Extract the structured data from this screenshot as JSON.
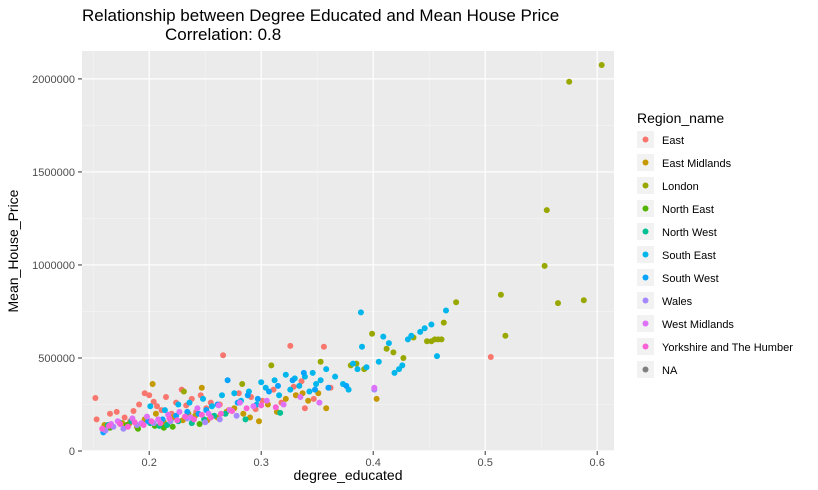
{
  "chart_data": {
    "type": "scatter",
    "title": "Relationship between Degree Educated and Mean House Price",
    "subtitle": "Correlation: 0.8",
    "xlabel": "degree_educated",
    "ylabel": "Mean_House_Price",
    "xlim": [
      0.14,
      0.615
    ],
    "ylim": [
      0,
      2150000
    ],
    "x_ticks": [
      0.2,
      0.3,
      0.4,
      0.5,
      0.6
    ],
    "x_tick_labels": [
      "0.2",
      "0.3",
      "0.4",
      "0.5",
      "0.6"
    ],
    "y_ticks": [
      0,
      500000,
      1000000,
      1500000,
      2000000
    ],
    "y_tick_labels": [
      "0",
      "500000",
      "1000000",
      "1500000",
      "2000000"
    ],
    "grid": true,
    "legend_position": "right",
    "legend_title": "Region_name",
    "series": [
      {
        "name": "East",
        "color": "#F8766D",
        "points": [
          [
            0.152,
            285000
          ],
          [
            0.153,
            170000
          ],
          [
            0.165,
            200000
          ],
          [
            0.171,
            210000
          ],
          [
            0.178,
            180000
          ],
          [
            0.183,
            160000
          ],
          [
            0.186,
            215000
          ],
          [
            0.191,
            250000
          ],
          [
            0.196,
            310000
          ],
          [
            0.2,
            300000
          ],
          [
            0.204,
            265000
          ],
          [
            0.207,
            240000
          ],
          [
            0.211,
            220000
          ],
          [
            0.215,
            290000
          ],
          [
            0.22,
            200000
          ],
          [
            0.224,
            260000
          ],
          [
            0.229,
            330000
          ],
          [
            0.233,
            245000
          ],
          [
            0.238,
            280000
          ],
          [
            0.242,
            210000
          ],
          [
            0.246,
            300000
          ],
          [
            0.251,
            230000
          ],
          [
            0.255,
            260000
          ],
          [
            0.263,
            250000
          ],
          [
            0.266,
            515000
          ],
          [
            0.271,
            220000
          ],
          [
            0.28,
            310000
          ],
          [
            0.291,
            290000
          ],
          [
            0.295,
            225000
          ],
          [
            0.301,
            270000
          ],
          [
            0.311,
            330000
          ],
          [
            0.318,
            260000
          ],
          [
            0.326,
            565000
          ],
          [
            0.329,
            345000
          ],
          [
            0.331,
            300000
          ],
          [
            0.336,
            375000
          ],
          [
            0.339,
            230000
          ],
          [
            0.347,
            280000
          ],
          [
            0.356,
            560000
          ],
          [
            0.362,
            340000
          ],
          [
            0.505,
            505000
          ]
        ]
      },
      {
        "name": "East Midlands",
        "color": "#C49A00",
        "points": [
          [
            0.16,
            140000
          ],
          [
            0.176,
            150000
          ],
          [
            0.182,
            145000
          ],
          [
            0.189,
            130000
          ],
          [
            0.196,
            170000
          ],
          [
            0.203,
            360000
          ],
          [
            0.206,
            200000
          ],
          [
            0.213,
            155000
          ],
          [
            0.221,
            180000
          ],
          [
            0.23,
            165000
          ],
          [
            0.235,
            200000
          ],
          [
            0.241,
            190000
          ],
          [
            0.247,
            340000
          ],
          [
            0.252,
            165000
          ],
          [
            0.261,
            180000
          ],
          [
            0.269,
            210000
          ],
          [
            0.276,
            230000
          ],
          [
            0.284,
            200000
          ],
          [
            0.29,
            180000
          ],
          [
            0.298,
            160000
          ],
          [
            0.306,
            250000
          ],
          [
            0.314,
            210000
          ],
          [
            0.322,
            280000
          ],
          [
            0.331,
            300000
          ],
          [
            0.337,
            310000
          ],
          [
            0.342,
            270000
          ],
          [
            0.351,
            310000
          ],
          [
            0.358,
            230000
          ],
          [
            0.403,
            280000
          ]
        ]
      },
      {
        "name": "London",
        "color": "#99A800",
        "points": [
          [
            0.231,
            320000
          ],
          [
            0.283,
            360000
          ],
          [
            0.309,
            460000
          ],
          [
            0.353,
            480000
          ],
          [
            0.38,
            460000
          ],
          [
            0.385,
            470000
          ],
          [
            0.392,
            440000
          ],
          [
            0.399,
            630000
          ],
          [
            0.412,
            550000
          ],
          [
            0.418,
            530000
          ],
          [
            0.427,
            500000
          ],
          [
            0.436,
            610000
          ],
          [
            0.448,
            590000
          ],
          [
            0.452,
            590000
          ],
          [
            0.455,
            600000
          ],
          [
            0.458,
            600000
          ],
          [
            0.461,
            600000
          ],
          [
            0.463,
            690000
          ],
          [
            0.474,
            800000
          ],
          [
            0.514,
            840000
          ],
          [
            0.518,
            620000
          ],
          [
            0.553,
            995000
          ],
          [
            0.555,
            1295000
          ],
          [
            0.565,
            795000
          ],
          [
            0.575,
            1985000
          ],
          [
            0.588,
            810000
          ],
          [
            0.604,
            2075000
          ]
        ]
      },
      {
        "name": "North East",
        "color": "#53B400",
        "points": [
          [
            0.165,
            125000
          ],
          [
            0.18,
            140000
          ],
          [
            0.19,
            120000
          ],
          [
            0.205,
            135000
          ],
          [
            0.213,
            125000
          ],
          [
            0.221,
            130000
          ],
          [
            0.245,
            145000
          ]
        ]
      },
      {
        "name": "North West",
        "color": "#00C094",
        "points": [
          [
            0.163,
            140000
          ],
          [
            0.173,
            155000
          ],
          [
            0.184,
            160000
          ],
          [
            0.194,
            145000
          ],
          [
            0.201,
            150000
          ],
          [
            0.209,
            135000
          ],
          [
            0.216,
            140000
          ],
          [
            0.226,
            160000
          ],
          [
            0.238,
            150000
          ],
          [
            0.249,
            170000
          ],
          [
            0.258,
            190000
          ],
          [
            0.268,
            200000
          ],
          [
            0.286,
            170000
          ],
          [
            0.317,
            205000
          ]
        ]
      },
      {
        "name": "South East",
        "color": "#00B6EB",
        "points": [
          [
            0.201,
            240000
          ],
          [
            0.214,
            220000
          ],
          [
            0.226,
            250000
          ],
          [
            0.236,
            260000
          ],
          [
            0.248,
            280000
          ],
          [
            0.256,
            240000
          ],
          [
            0.265,
            300000
          ],
          [
            0.276,
            310000
          ],
          [
            0.282,
            270000
          ],
          [
            0.289,
            320000
          ],
          [
            0.296,
            250000
          ],
          [
            0.3,
            370000
          ],
          [
            0.304,
            340000
          ],
          [
            0.312,
            380000
          ],
          [
            0.316,
            300000
          ],
          [
            0.322,
            410000
          ],
          [
            0.326,
            330000
          ],
          [
            0.33,
            390000
          ],
          [
            0.334,
            350000
          ],
          [
            0.339,
            400000
          ],
          [
            0.343,
            320000
          ],
          [
            0.346,
            420000
          ],
          [
            0.349,
            360000
          ],
          [
            0.353,
            380000
          ],
          [
            0.358,
            440000
          ],
          [
            0.366,
            400000
          ],
          [
            0.373,
            360000
          ],
          [
            0.378,
            330000
          ],
          [
            0.382,
            470000
          ],
          [
            0.386,
            440000
          ],
          [
            0.389,
            745000
          ],
          [
            0.39,
            560000
          ],
          [
            0.394,
            450000
          ],
          [
            0.405,
            480000
          ],
          [
            0.409,
            615000
          ],
          [
            0.414,
            580000
          ],
          [
            0.419,
            420000
          ],
          [
            0.423,
            440000
          ],
          [
            0.426,
            460000
          ],
          [
            0.431,
            600000
          ],
          [
            0.434,
            620000
          ],
          [
            0.442,
            640000
          ],
          [
            0.446,
            660000
          ],
          [
            0.452,
            680000
          ],
          [
            0.457,
            510000
          ],
          [
            0.465,
            755000
          ]
        ]
      },
      {
        "name": "South West",
        "color": "#06A4FF",
        "points": [
          [
            0.159,
            100000
          ],
          [
            0.199,
            160000
          ],
          [
            0.212,
            170000
          ],
          [
            0.224,
            190000
          ],
          [
            0.234,
            210000
          ],
          [
            0.244,
            200000
          ],
          [
            0.251,
            220000
          ],
          [
            0.261,
            250000
          ],
          [
            0.27,
            380000
          ],
          [
            0.279,
            260000
          ],
          [
            0.288,
            300000
          ],
          [
            0.297,
            280000
          ],
          [
            0.307,
            320000
          ],
          [
            0.315,
            350000
          ],
          [
            0.328,
            380000
          ],
          [
            0.338,
            420000
          ],
          [
            0.348,
            330000
          ],
          [
            0.36,
            340000
          ],
          [
            0.376,
            350000
          ]
        ]
      },
      {
        "name": "Wales",
        "color": "#A58AFF",
        "points": [
          [
            0.161,
            110000
          ],
          [
            0.168,
            130000
          ],
          [
            0.177,
            120000
          ],
          [
            0.189,
            140000
          ],
          [
            0.204,
            150000
          ],
          [
            0.219,
            160000
          ],
          [
            0.234,
            175000
          ],
          [
            0.25,
            155000
          ],
          [
            0.263,
            170000
          ],
          [
            0.278,
            190000
          ],
          [
            0.401,
            330000
          ]
        ]
      },
      {
        "name": "West Midlands",
        "color": "#DF70F8",
        "points": [
          [
            0.166,
            145000
          ],
          [
            0.172,
            160000
          ],
          [
            0.185,
            175000
          ],
          [
            0.193,
            150000
          ],
          [
            0.198,
            185000
          ],
          [
            0.208,
            170000
          ],
          [
            0.217,
            195000
          ],
          [
            0.227,
            210000
          ],
          [
            0.237,
            180000
          ],
          [
            0.243,
            230000
          ],
          [
            0.253,
            200000
          ],
          [
            0.262,
            245000
          ],
          [
            0.272,
            220000
          ],
          [
            0.281,
            260000
          ],
          [
            0.293,
            240000
          ],
          [
            0.305,
            270000
          ],
          [
            0.32,
            250000
          ],
          [
            0.335,
            290000
          ],
          [
            0.352,
            260000
          ],
          [
            0.401,
            340000
          ]
        ]
      },
      {
        "name": "Yorkshire and The Humber",
        "color": "#FB61D7",
        "points": [
          [
            0.158,
            120000
          ],
          [
            0.164,
            135000
          ],
          [
            0.174,
            145000
          ],
          [
            0.181,
            130000
          ],
          [
            0.187,
            155000
          ],
          [
            0.195,
            140000
          ],
          [
            0.202,
            160000
          ],
          [
            0.21,
            150000
          ],
          [
            0.218,
            175000
          ],
          [
            0.225,
            165000
          ],
          [
            0.232,
            185000
          ],
          [
            0.24,
            170000
          ],
          [
            0.247,
            195000
          ],
          [
            0.255,
            180000
          ],
          [
            0.264,
            200000
          ],
          [
            0.274,
            215000
          ],
          [
            0.287,
            230000
          ],
          [
            0.3,
            245000
          ],
          [
            0.313,
            235000
          ]
        ]
      },
      {
        "name": "NA",
        "color": "#7F7F7F",
        "points": []
      }
    ]
  }
}
